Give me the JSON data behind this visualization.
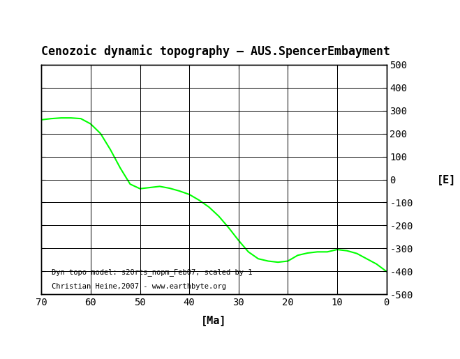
{
  "title": "Cenozoic dynamic topography – AUS.SpencerEmbayment",
  "xlabel": "[Ma]",
  "ylabel": "[E]",
  "xlim": [
    70,
    0
  ],
  "ylim": [
    -500,
    500
  ],
  "yticks": [
    -500,
    -400,
    -300,
    -200,
    -100,
    0,
    100,
    200,
    300,
    400,
    500
  ],
  "xticks": [
    70,
    60,
    50,
    40,
    30,
    20,
    10,
    0
  ],
  "annotation_line1": "Dyn topo model: s20rts_nopm_Feb07, scaled by 1",
  "annotation_line2": "Christian Heine,2007 - www.earthbyte.org",
  "line_color": "#00ff00",
  "line_width": 1.5,
  "x_data": [
    70,
    68,
    66,
    64,
    62,
    60,
    58,
    56,
    54,
    52,
    50,
    48,
    46,
    44,
    42,
    40,
    38,
    36,
    34,
    32,
    30,
    28,
    26,
    24,
    22,
    20,
    18,
    16,
    14,
    12,
    10,
    8,
    6,
    4,
    2,
    0
  ],
  "y_data": [
    260,
    265,
    268,
    268,
    265,
    242,
    200,
    130,
    50,
    -20,
    -40,
    -35,
    -30,
    -38,
    -50,
    -65,
    -90,
    -120,
    -160,
    -210,
    -265,
    -315,
    -345,
    -355,
    -360,
    -355,
    -330,
    -320,
    -315,
    -315,
    -305,
    -310,
    -322,
    -345,
    -368,
    -400
  ]
}
